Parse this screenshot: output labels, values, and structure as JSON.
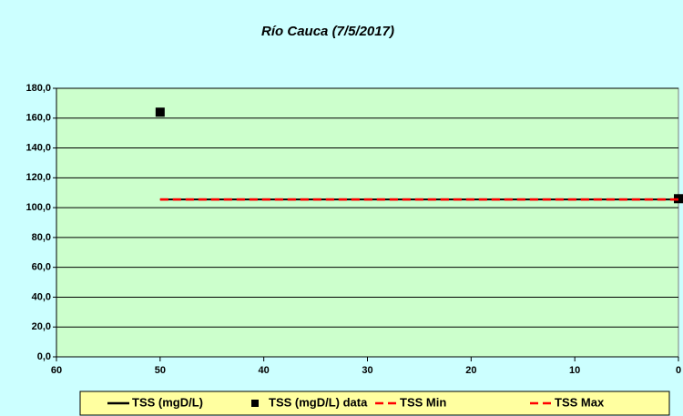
{
  "chart_data": {
    "type": "line",
    "title": "Río Cauca (7/5/2017)",
    "xlim": [
      60,
      0
    ],
    "xticks": [
      60,
      50,
      40,
      30,
      20,
      10,
      0
    ],
    "ylim": [
      0,
      180
    ],
    "yticks": [
      {
        "value": 0,
        "label": "0,0"
      },
      {
        "value": 20,
        "label": "20,0"
      },
      {
        "value": 40,
        "label": "40,0"
      },
      {
        "value": 60,
        "label": "60,0"
      },
      {
        "value": 80,
        "label": "80,0"
      },
      {
        "value": 100,
        "label": "100,0"
      },
      {
        "value": 120,
        "label": "120,0"
      },
      {
        "value": 140,
        "label": "140,0"
      },
      {
        "value": 160,
        "label": "160,0"
      },
      {
        "value": 180,
        "label": "180,0"
      }
    ],
    "grid": true,
    "legend": "bottom",
    "series": [
      {
        "name": "TSS (mgD/L)",
        "color": "#000000",
        "line_style": "solid",
        "x": [
          50,
          0
        ],
        "values": [
          105.5,
          105.5
        ]
      },
      {
        "name": "TSS (mgD/L) data",
        "color": "#000000",
        "marker": "square",
        "x": [
          50,
          0
        ],
        "values": [
          164,
          106
        ]
      },
      {
        "name": "TSS Min",
        "color": "#ff0000",
        "line_style": "dashed",
        "x": [
          50,
          0
        ],
        "values": [
          105.5,
          105.5
        ]
      },
      {
        "name": "TSS Max",
        "color": "#ff0000",
        "line_style": "dashed",
        "x": [
          50,
          0
        ],
        "values": [
          105.5,
          105.5
        ]
      }
    ]
  }
}
